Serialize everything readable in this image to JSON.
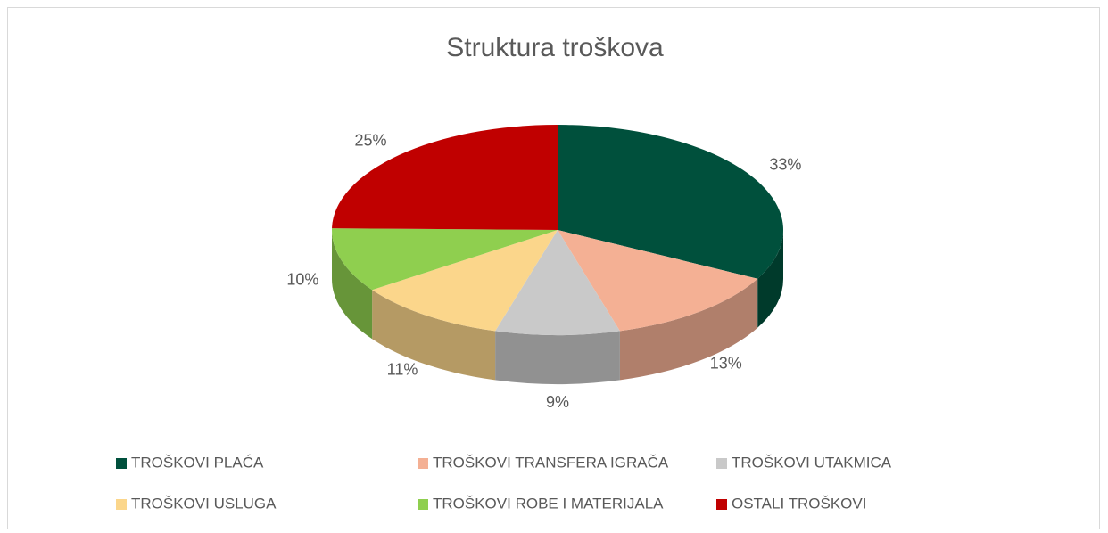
{
  "chart_data": {
    "type": "pie",
    "title": "Struktura troškova",
    "categories": [
      "TROŠKOVI PLAĆA",
      "TROŠKOVI TRANSFERA IGRAČA",
      "TROŠKOVI UTAKMICA",
      "TROŠKOVI USLUGA",
      "TROŠKOVI ROBE I MATERIJALA",
      "OSTALI TROŠKOVI"
    ],
    "values": [
      33,
      13,
      9,
      11,
      10,
      25
    ],
    "value_labels": [
      "33%",
      "13%",
      "9%",
      "11%",
      "10%",
      "25%"
    ],
    "colors": [
      "#00503c",
      "#f4b094",
      "#c9c9c9",
      "#fbd68b",
      "#8fcf4f",
      "#c00000"
    ],
    "legend": "bottom"
  }
}
